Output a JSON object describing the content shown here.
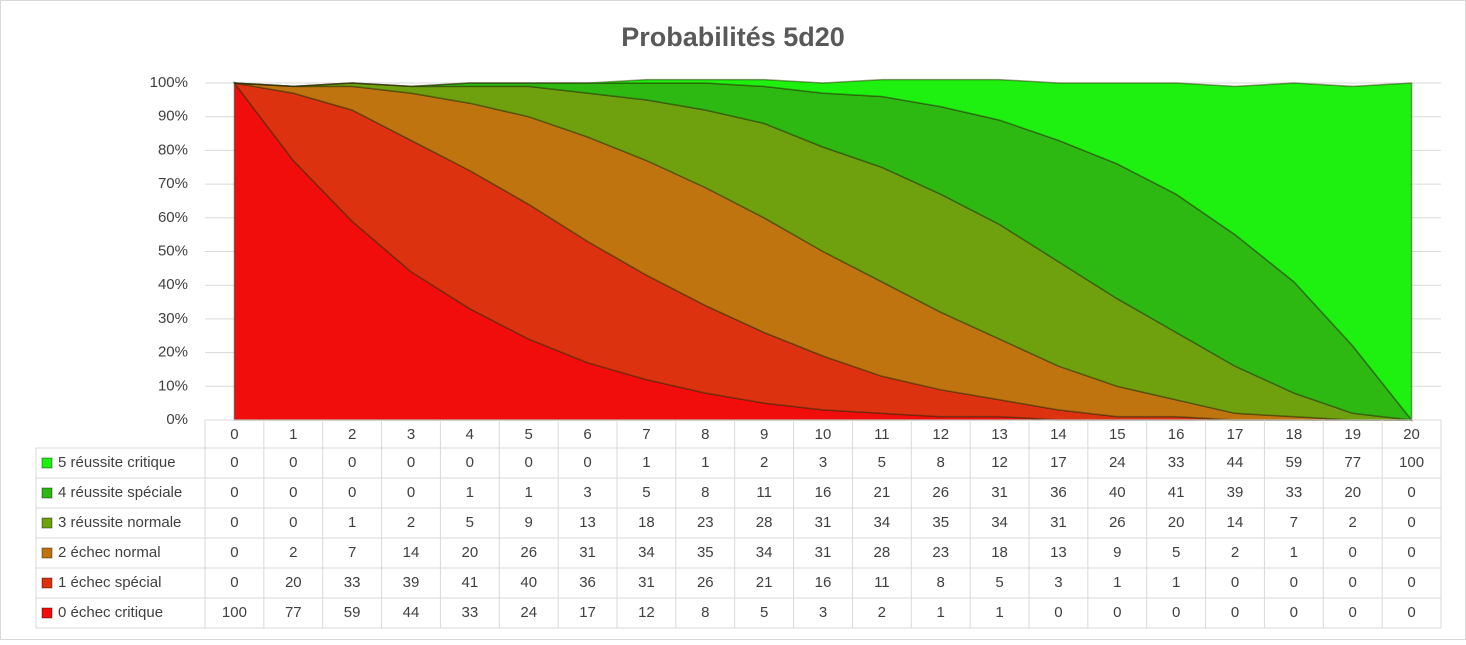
{
  "chart_data": {
    "type": "stacked-area",
    "title": "Probabilités 5d20",
    "categories": [
      0,
      1,
      2,
      3,
      4,
      5,
      6,
      7,
      8,
      9,
      10,
      11,
      12,
      13,
      14,
      15,
      16,
      17,
      18,
      19,
      20
    ],
    "series": [
      {
        "name": "0 échec critique",
        "color": "#f20d0d",
        "values": [
          100,
          77,
          59,
          44,
          33,
          24,
          17,
          12,
          8,
          5,
          3,
          2,
          1,
          1,
          0,
          0,
          0,
          0,
          0,
          0,
          0
        ]
      },
      {
        "name": "1 échec spécial",
        "color": "#dc3210",
        "values": [
          0,
          20,
          33,
          39,
          41,
          40,
          36,
          31,
          26,
          21,
          16,
          11,
          8,
          5,
          3,
          1,
          1,
          0,
          0,
          0,
          0
        ]
      },
      {
        "name": "2 échec normal",
        "color": "#bf7410",
        "values": [
          0,
          2,
          7,
          14,
          20,
          26,
          31,
          34,
          35,
          34,
          31,
          28,
          23,
          18,
          13,
          9,
          5,
          2,
          1,
          0,
          0
        ]
      },
      {
        "name": "3 réussite normale",
        "color": "#6fa10e",
        "values": [
          0,
          0,
          1,
          2,
          5,
          9,
          13,
          18,
          23,
          28,
          31,
          34,
          35,
          34,
          31,
          26,
          20,
          14,
          7,
          2,
          0
        ]
      },
      {
        "name": "4 réussite spéciale",
        "color": "#2db812",
        "values": [
          0,
          0,
          0,
          0,
          1,
          1,
          3,
          5,
          8,
          11,
          16,
          21,
          26,
          31,
          36,
          40,
          41,
          39,
          33,
          20,
          0
        ]
      },
      {
        "name": "5 réussite critique",
        "color": "#1ef010",
        "values": [
          0,
          0,
          0,
          0,
          0,
          0,
          0,
          1,
          1,
          2,
          3,
          5,
          8,
          12,
          17,
          24,
          33,
          44,
          59,
          77,
          100
        ]
      }
    ],
    "ylim": [
      0,
      100
    ],
    "yticks": [
      {
        "value": 0,
        "label": "0%"
      },
      {
        "value": 10,
        "label": "10%"
      },
      {
        "value": 20,
        "label": "20%"
      },
      {
        "value": 30,
        "label": "30%"
      },
      {
        "value": 40,
        "label": "40%"
      },
      {
        "value": 50,
        "label": "50%"
      },
      {
        "value": 60,
        "label": "60%"
      },
      {
        "value": 70,
        "label": "70%"
      },
      {
        "value": 80,
        "label": "80%"
      },
      {
        "value": 90,
        "label": "90%"
      },
      {
        "value": 100,
        "label": "100%"
      }
    ],
    "grid": true
  }
}
